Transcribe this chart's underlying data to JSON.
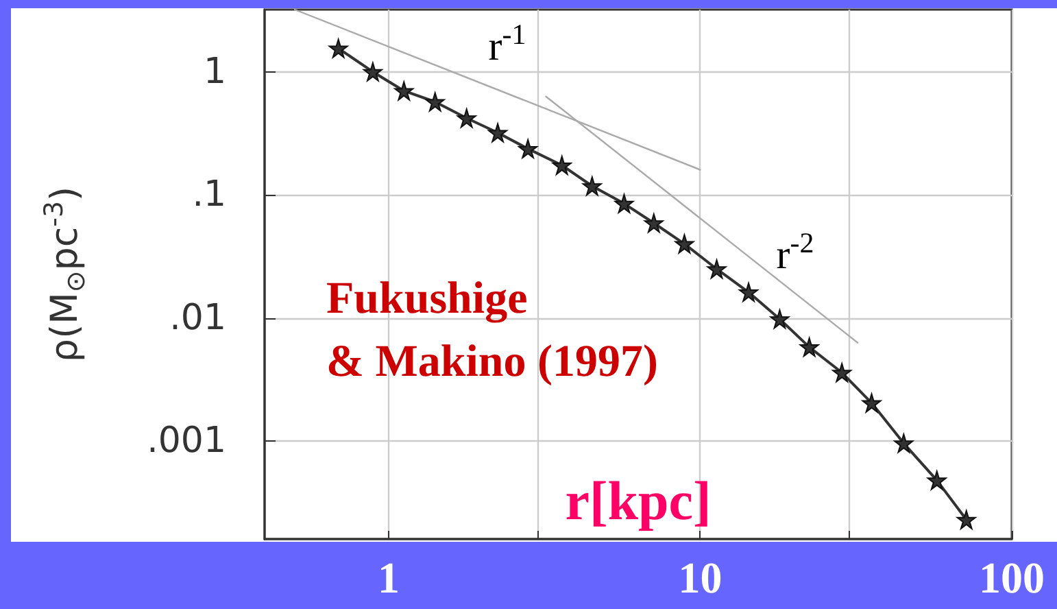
{
  "chart_data": {
    "type": "line",
    "xlabel": "r[kpc]",
    "ylabel": "ρ(M$_{⊙}$pc$^{-3}$)",
    "log": "xy",
    "grid": true,
    "marker": "star",
    "line_style": "solid",
    "xlim": [
      0.4,
      100
    ],
    "ylim": [
      0.00016,
      3.2
    ],
    "xticks": [
      1,
      {
        "value": 3,
        "label": null
      },
      10,
      {
        "value": 30,
        "label": null
      },
      100
    ],
    "yticks": [
      {
        "value": 0.001,
        "label": ".001"
      },
      {
        "value": 0.01,
        "label": ".01"
      },
      {
        "value": 0.1,
        "label": ".1"
      },
      1
    ],
    "x": [
      0.69,
      0.89,
      1.12,
      1.41,
      1.78,
      2.24,
      2.8,
      3.6,
      4.5,
      5.7,
      7.1,
      8.9,
      11.3,
      14.3,
      18,
      22.4,
      28.5,
      35.5,
      45,
      57.5,
      71.5
    ],
    "series": [
      {
        "color": "#333333",
        "values": [
          1.55,
          1.0,
          0.7,
          0.57,
          0.42,
          0.32,
          0.237,
          0.174,
          0.118,
          0.085,
          0.059,
          0.04,
          0.025,
          0.0162,
          0.0098,
          0.0058,
          0.0036,
          0.00204,
          0.00096,
          0.00048,
          0.00023
        ]
      },
      {
        "type": "line",
        "marker": "none",
        "color": "#aaaaaa",
        "x": [
          0.5,
          10
        ],
        "values": [
          3.2,
          0.16
        ]
      },
      {
        "type": "line",
        "marker": "none",
        "color": "#aaaaaa",
        "x": [
          3.2,
          32
        ],
        "values": [
          0.63,
          0.0063
        ]
      }
    ],
    "annotations": [
      "r$^{-1}$",
      "r$^{-2}$",
      "Fukushige\n& Makino (1997)"
    ]
  }
}
